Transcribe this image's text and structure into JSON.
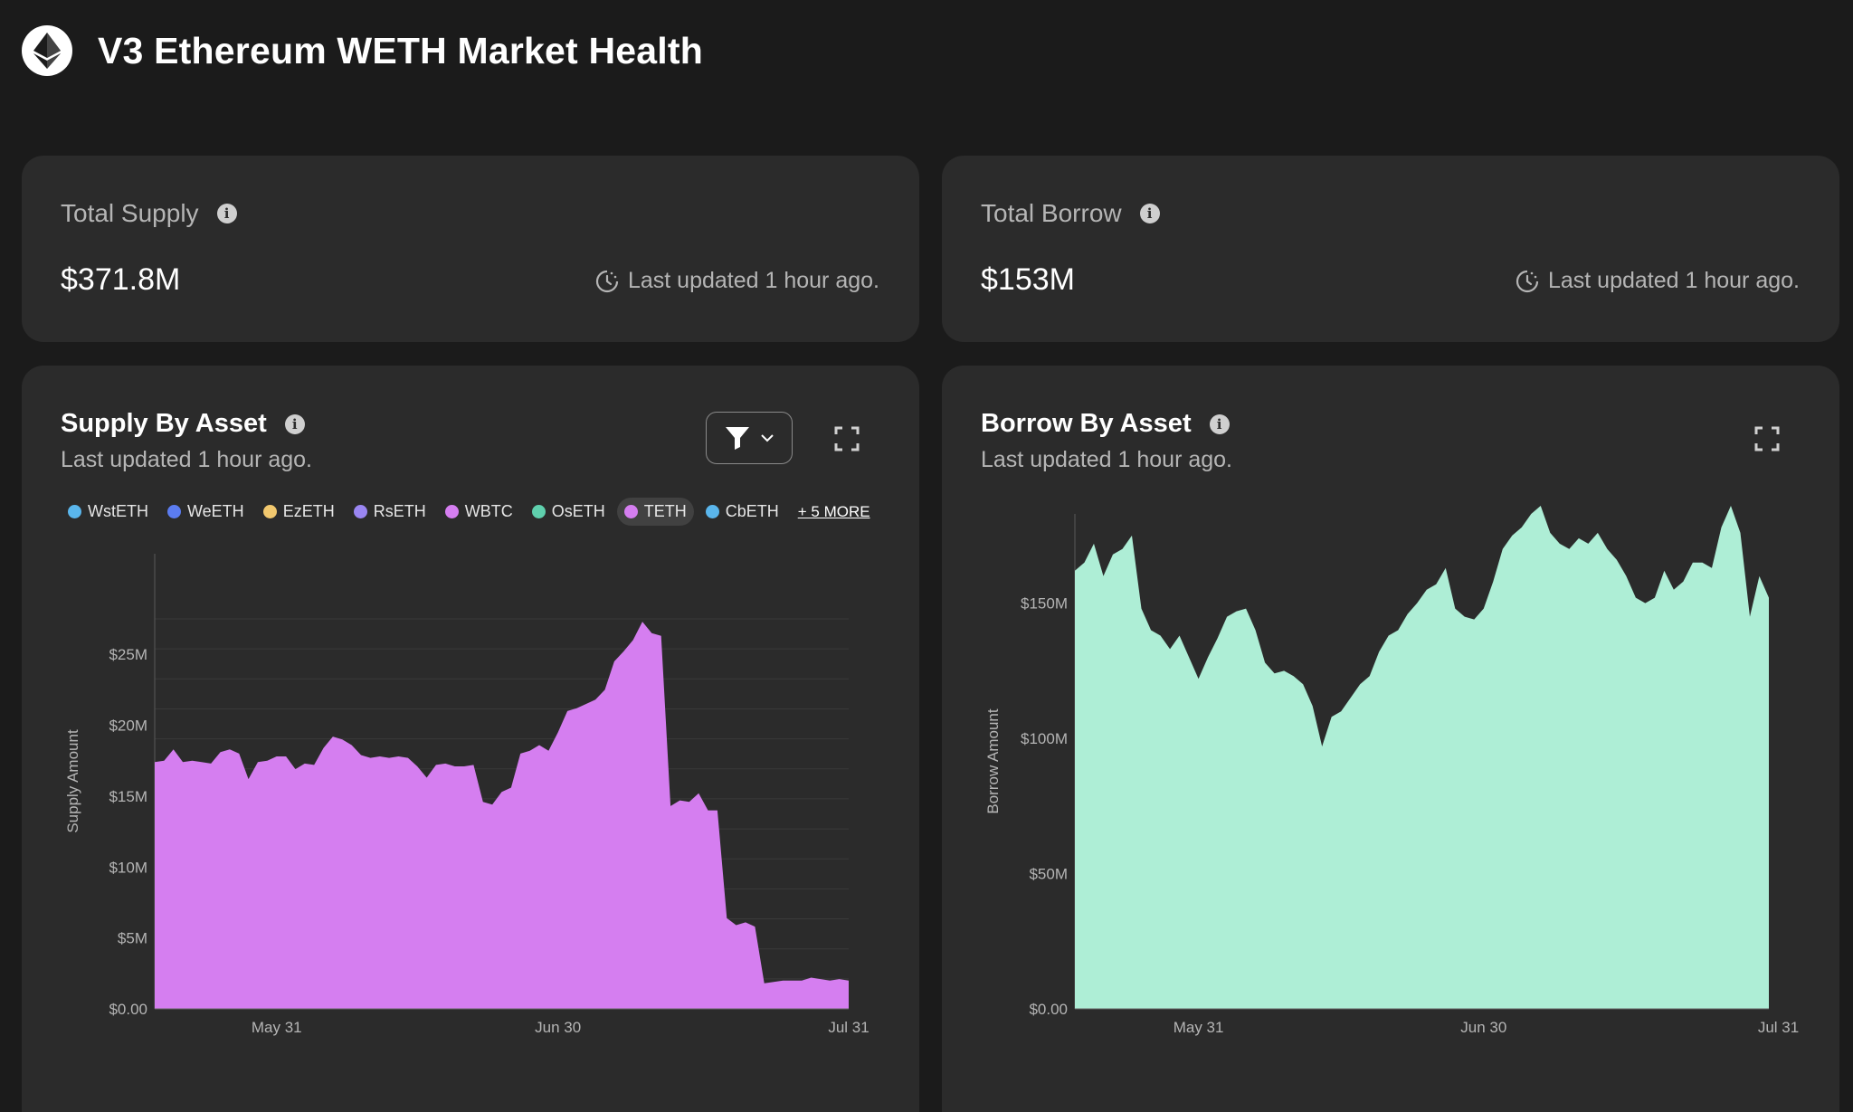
{
  "page": {
    "title": "V3 Ethereum WETH Market Health"
  },
  "stats": {
    "supply": {
      "title": "Total Supply",
      "value": "$371.8M",
      "updated": "Last updated 1 hour ago."
    },
    "borrow": {
      "title": "Total Borrow",
      "value": "$153M",
      "updated": "Last updated 1 hour ago."
    }
  },
  "supply_chart": {
    "title": "Supply By Asset",
    "subtitle": "Last updated 1 hour ago.",
    "legend": [
      {
        "label": "WstETH",
        "color": "#5ab6ec",
        "active": false
      },
      {
        "label": "WeETH",
        "color": "#5b7cf0",
        "active": false
      },
      {
        "label": "EzETH",
        "color": "#f2c86e",
        "active": false
      },
      {
        "label": "RsETH",
        "color": "#9a86f2",
        "active": false
      },
      {
        "label": "WBTC",
        "color": "#d57ef0",
        "active": false
      },
      {
        "label": "OsETH",
        "color": "#5fd0ad",
        "active": false
      },
      {
        "label": "TETH",
        "color": "#d57ef0",
        "active": true
      },
      {
        "label": "CbETH",
        "color": "#5ab6ec",
        "active": false
      }
    ],
    "more_label": "+ 5 MORE"
  },
  "borrow_chart": {
    "title": "Borrow By Asset",
    "subtitle": "Last updated 1 hour ago."
  },
  "chart_data": [
    {
      "type": "area",
      "ylabel": "Supply Amount",
      "xlabel": "",
      "ylim": [
        0,
        27.5
      ],
      "yticks": [
        0,
        5,
        10,
        15,
        20,
        25
      ],
      "ytick_labels": [
        "$0.00",
        "$5M",
        "$10M",
        "$15M",
        "$20M",
        "$25M"
      ],
      "xtick_labels": [
        "May 31",
        "Jun 30",
        "Jul 31"
      ],
      "xtick_positions": [
        13,
        43,
        74
      ],
      "grid": true,
      "color": "#d57ef0",
      "series": [
        {
          "values": [
            17.4,
            17.5,
            18.3,
            17.4,
            17.5,
            17.4,
            17.3,
            18.1,
            18.3,
            18.0,
            16.2,
            17.4,
            17.5,
            17.8,
            17.8,
            16.9,
            17.3,
            17.2,
            18.4,
            19.2,
            19.0,
            18.6,
            17.9,
            17.7,
            17.8,
            17.7,
            17.8,
            17.7,
            17.1,
            16.3,
            17.2,
            17.3,
            17.1,
            17.1,
            17.2,
            14.6,
            14.4,
            15.3,
            15.6,
            18.0,
            18.2,
            18.6,
            18.2,
            19.5,
            21.0,
            21.2,
            21.5,
            21.8,
            22.5,
            24.5,
            25.2,
            26.0,
            27.3,
            26.5,
            26.3,
            14.3,
            14.7,
            14.6,
            15.2,
            14.0,
            14.0,
            6.4,
            5.9,
            6.1,
            5.8,
            1.8,
            1.9,
            2.0,
            2.0,
            2.0,
            2.2,
            2.1,
            2.0,
            2.1,
            2.0
          ]
        }
      ]
    },
    {
      "type": "area",
      "ylabel": "Borrow Amount",
      "xlabel": "",
      "ylim": [
        0,
        185
      ],
      "yticks": [
        0,
        50,
        100,
        150
      ],
      "ytick_labels": [
        "$0.00",
        "$50M",
        "$100M",
        "$150M"
      ],
      "xtick_labels": [
        "May 31",
        "Jun 30",
        "Jul 31"
      ],
      "xtick_positions": [
        13,
        43,
        74
      ],
      "grid": false,
      "color": "#aeeed6",
      "series": [
        {
          "values": [
            162,
            165,
            172,
            160,
            168,
            170,
            175,
            148,
            140,
            138,
            133,
            138,
            130,
            122,
            130,
            137,
            145,
            147,
            148,
            140,
            128,
            124,
            125,
            123,
            120,
            112,
            97,
            108,
            110,
            115,
            120,
            123,
            132,
            138,
            140,
            146,
            150,
            155,
            157,
            163,
            148,
            145,
            144,
            148,
            158,
            170,
            175,
            178,
            183,
            186,
            176,
            172,
            170,
            174,
            172,
            176,
            170,
            166,
            160,
            152,
            150,
            152,
            162,
            155,
            158,
            165,
            165,
            163,
            178,
            186,
            176,
            145,
            160,
            152
          ]
        }
      ]
    }
  ]
}
